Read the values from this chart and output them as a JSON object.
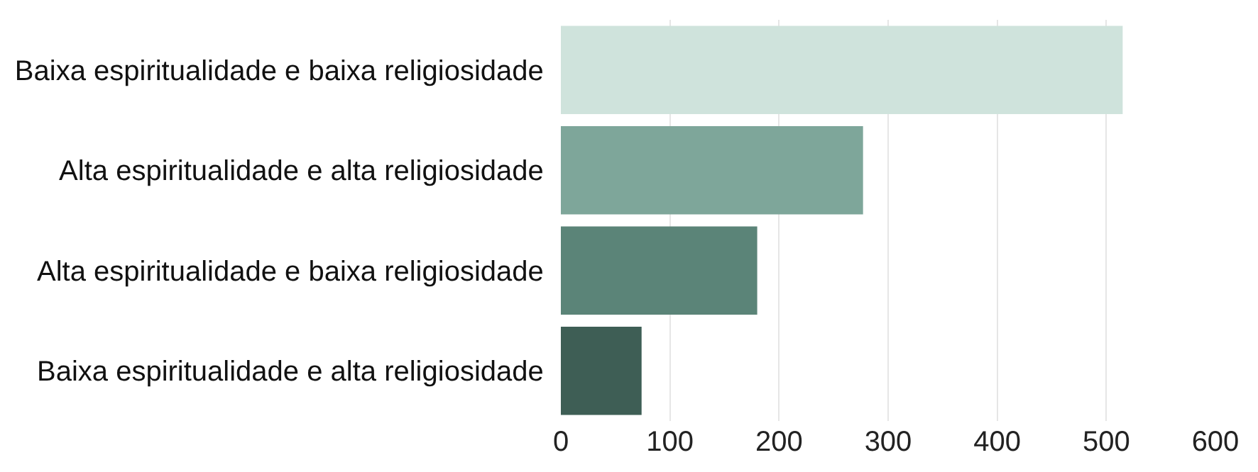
{
  "chart_data": {
    "type": "bar",
    "orientation": "horizontal",
    "categories": [
      "Baixa espiritualidade e baixa religiosidade",
      "Alta espiritualidade e alta religiosidade",
      "Alta espiritualidade e baixa religiosidade",
      "Baixa espiritualidade e alta religiosidade"
    ],
    "values": [
      515,
      277,
      180,
      74
    ],
    "colors": [
      "#cfe3dc",
      "#7ea69a",
      "#5b8478",
      "#3e5e55"
    ],
    "xlim": [
      0,
      600
    ],
    "xticks": [
      0,
      100,
      200,
      300,
      400,
      500,
      600
    ],
    "grid": "x"
  }
}
